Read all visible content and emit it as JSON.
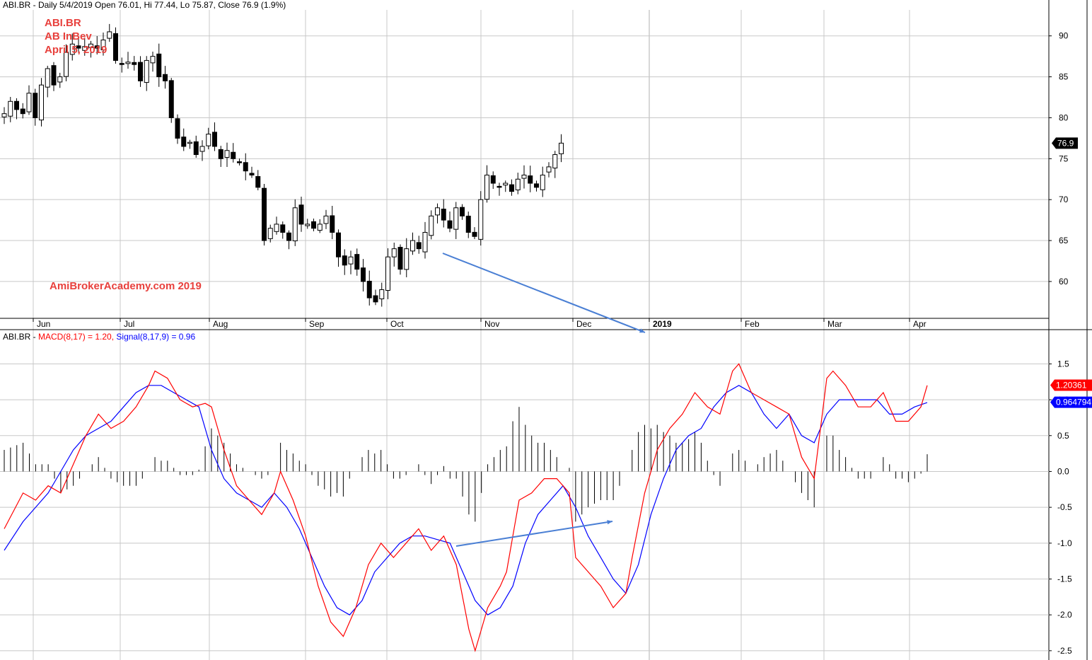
{
  "price_header": {
    "symbol": "ABI.BR",
    "text": "ABI.BR - Daily 5/4/2019 Open 76.01, Hi 77.44, Lo 75.87, Close 76.9 (1.9%)"
  },
  "annotations": {
    "line1": "ABI.BR",
    "line2": "AB InBev",
    "line3": "April 5, 2019",
    "watermark": "AmiBrokerAcademy.com  2019"
  },
  "macd_header": {
    "prefix": "ABI.BR - ",
    "macd": "MACD(8,17) = 1.20, ",
    "signal": "Signal(8,17,9) = 0.96"
  },
  "colors": {
    "macd": "#ff0000",
    "signal": "#0000ff",
    "arrow": "#4a7fd4",
    "annotation": "#e8403c",
    "candle": "#000000",
    "grid": "#c8c8c8"
  },
  "chart_data": [
    {
      "type": "candlestick",
      "title": "ABI.BR - Daily 5/4/2019 Open 76.01, Hi 77.44, Lo 75.87, Close 76.9 (1.9%)",
      "y_ticks": [
        60,
        65,
        70,
        75,
        80,
        85,
        90
      ],
      "ylim": [
        55.5,
        93
      ],
      "x_ticks": [
        "Jun",
        "Jul",
        "Aug",
        "Sep",
        "Oct",
        "Nov",
        "Dec",
        "2019",
        "Feb",
        "Mar",
        "Apr"
      ],
      "last_price_label": "76.9",
      "grid": true,
      "series": [
        {
          "name": "ABI.BR",
          "anchors_close": [
            80.5,
            82,
            81,
            80.5,
            83,
            80,
            84,
            86,
            84,
            85,
            88,
            89,
            88.5,
            88.7,
            89,
            88.5,
            89.5,
            90.5,
            87,
            86.5,
            86.8,
            86.5,
            84.5,
            87,
            87.5,
            85,
            84.5,
            80,
            77.5,
            76.5,
            77,
            75.5,
            76.5,
            78,
            76.5,
            75,
            76,
            75,
            74.5,
            73.5,
            73,
            71.5,
            65,
            66.5,
            67,
            66,
            65,
            69,
            67,
            67,
            66.5,
            67,
            68,
            66,
            63,
            62,
            63,
            61.5,
            60,
            58,
            57.5,
            59,
            63,
            64,
            61.5,
            64,
            65,
            64,
            66,
            68,
            69,
            67.5,
            66.5,
            69,
            68,
            66,
            65.5,
            70,
            73,
            72,
            71.5,
            72,
            71,
            72.5,
            73,
            72,
            71.5,
            73,
            74,
            75.5,
            76.9
          ]
        }
      ]
    },
    {
      "type": "line",
      "title": "MACD(8,17) = 1.20, Signal(8,17,9) = 0.96",
      "y_ticks": [
        -2.5,
        -2.0,
        -1.5,
        -1.0,
        -0.5,
        0.0,
        0.5,
        1.0,
        1.5
      ],
      "ylim": [
        -2.6,
        1.8
      ],
      "grid": true,
      "series": [
        {
          "name": "MACD(8,17)",
          "color": "#ff0000",
          "points": [
            [
              0,
              -0.8
            ],
            [
              3,
              -0.3
            ],
            [
              5,
              -0.4
            ],
            [
              7,
              -0.2
            ],
            [
              9,
              -0.3
            ],
            [
              11,
              0.1
            ],
            [
              13,
              0.5
            ],
            [
              15,
              0.8
            ],
            [
              17,
              0.6
            ],
            [
              19,
              0.7
            ],
            [
              21,
              0.9
            ],
            [
              23,
              1.2
            ],
            [
              24,
              1.4
            ],
            [
              26,
              1.3
            ],
            [
              28,
              1.0
            ],
            [
              30,
              0.9
            ],
            [
              32,
              0.95
            ],
            [
              33,
              0.9
            ],
            [
              35,
              0.3
            ],
            [
              37,
              -0.2
            ],
            [
              39,
              -0.4
            ],
            [
              41,
              -0.6
            ],
            [
              43,
              -0.3
            ],
            [
              44,
              0.0
            ],
            [
              46,
              -0.4
            ],
            [
              48,
              -0.9
            ],
            [
              50,
              -1.6
            ],
            [
              52,
              -2.1
            ],
            [
              54,
              -2.3
            ],
            [
              56,
              -1.9
            ],
            [
              58,
              -1.3
            ],
            [
              60,
              -1.0
            ],
            [
              62,
              -1.2
            ],
            [
              64,
              -1.0
            ],
            [
              66,
              -0.8
            ],
            [
              68,
              -1.1
            ],
            [
              70,
              -0.9
            ],
            [
              72,
              -1.3
            ],
            [
              74,
              -2.2
            ],
            [
              75,
              -2.5
            ],
            [
              77,
              -1.9
            ],
            [
              79,
              -1.6
            ],
            [
              80,
              -1.4
            ],
            [
              82,
              -0.4
            ],
            [
              84,
              -0.3
            ],
            [
              86,
              -0.1
            ],
            [
              88,
              -0.1
            ],
            [
              90,
              -0.3
            ],
            [
              91,
              -1.2
            ],
            [
              93,
              -1.4
            ],
            [
              95,
              -1.6
            ],
            [
              97,
              -1.9
            ],
            [
              99,
              -1.7
            ],
            [
              100,
              -1.2
            ],
            [
              102,
              -0.3
            ],
            [
              104,
              0.3
            ],
            [
              106,
              0.6
            ],
            [
              108,
              0.8
            ],
            [
              110,
              1.1
            ],
            [
              112,
              0.9
            ],
            [
              114,
              0.8
            ],
            [
              116,
              1.4
            ],
            [
              117,
              1.5
            ],
            [
              119,
              1.1
            ],
            [
              121,
              1.0
            ],
            [
              123,
              0.9
            ],
            [
              125,
              0.8
            ],
            [
              127,
              0.2
            ],
            [
              129,
              -0.1
            ],
            [
              131,
              1.3
            ],
            [
              132,
              1.4
            ],
            [
              134,
              1.2
            ],
            [
              136,
              0.9
            ],
            [
              138,
              0.9
            ],
            [
              140,
              1.1
            ],
            [
              142,
              0.7
            ],
            [
              144,
              0.7
            ],
            [
              146,
              0.9
            ],
            [
              147,
              1.2
            ]
          ]
        },
        {
          "name": "Signal(8,17,9)",
          "color": "#0000ff",
          "points": [
            [
              0,
              -1.1
            ],
            [
              3,
              -0.7
            ],
            [
              5,
              -0.5
            ],
            [
              7,
              -0.3
            ],
            [
              9,
              0.0
            ],
            [
              11,
              0.3
            ],
            [
              13,
              0.5
            ],
            [
              15,
              0.6
            ],
            [
              17,
              0.7
            ],
            [
              19,
              0.9
            ],
            [
              21,
              1.1
            ],
            [
              23,
              1.2
            ],
            [
              25,
              1.2
            ],
            [
              27,
              1.1
            ],
            [
              29,
              1.0
            ],
            [
              31,
              0.9
            ],
            [
              33,
              0.3
            ],
            [
              35,
              -0.1
            ],
            [
              37,
              -0.3
            ],
            [
              39,
              -0.4
            ],
            [
              41,
              -0.5
            ],
            [
              43,
              -0.3
            ],
            [
              45,
              -0.5
            ],
            [
              47,
              -0.8
            ],
            [
              49,
              -1.2
            ],
            [
              51,
              -1.6
            ],
            [
              53,
              -1.9
            ],
            [
              55,
              -2.0
            ],
            [
              57,
              -1.8
            ],
            [
              59,
              -1.4
            ],
            [
              61,
              -1.2
            ],
            [
              63,
              -1.0
            ],
            [
              65,
              -0.9
            ],
            [
              67,
              -0.9
            ],
            [
              69,
              -0.95
            ],
            [
              71,
              -1.0
            ],
            [
              73,
              -1.4
            ],
            [
              75,
              -1.8
            ],
            [
              77,
              -2.0
            ],
            [
              79,
              -1.9
            ],
            [
              81,
              -1.6
            ],
            [
              83,
              -1.0
            ],
            [
              85,
              -0.6
            ],
            [
              87,
              -0.4
            ],
            [
              89,
              -0.2
            ],
            [
              91,
              -0.5
            ],
            [
              93,
              -0.9
            ],
            [
              95,
              -1.2
            ],
            [
              97,
              -1.5
            ],
            [
              99,
              -1.7
            ],
            [
              101,
              -1.3
            ],
            [
              103,
              -0.6
            ],
            [
              105,
              -0.1
            ],
            [
              107,
              0.3
            ],
            [
              109,
              0.5
            ],
            [
              111,
              0.6
            ],
            [
              113,
              0.9
            ],
            [
              115,
              1.1
            ],
            [
              117,
              1.2
            ],
            [
              119,
              1.1
            ],
            [
              121,
              0.8
            ],
            [
              123,
              0.6
            ],
            [
              125,
              0.8
            ],
            [
              127,
              0.5
            ],
            [
              129,
              0.4
            ],
            [
              131,
              0.8
            ],
            [
              133,
              1.0
            ],
            [
              135,
              1.0
            ],
            [
              137,
              1.0
            ],
            [
              139,
              1.0
            ],
            [
              141,
              0.8
            ],
            [
              143,
              0.8
            ],
            [
              145,
              0.9
            ],
            [
              147,
              0.96
            ]
          ]
        }
      ],
      "last_value_labels": [
        "1.20361",
        "0.964794"
      ]
    }
  ]
}
